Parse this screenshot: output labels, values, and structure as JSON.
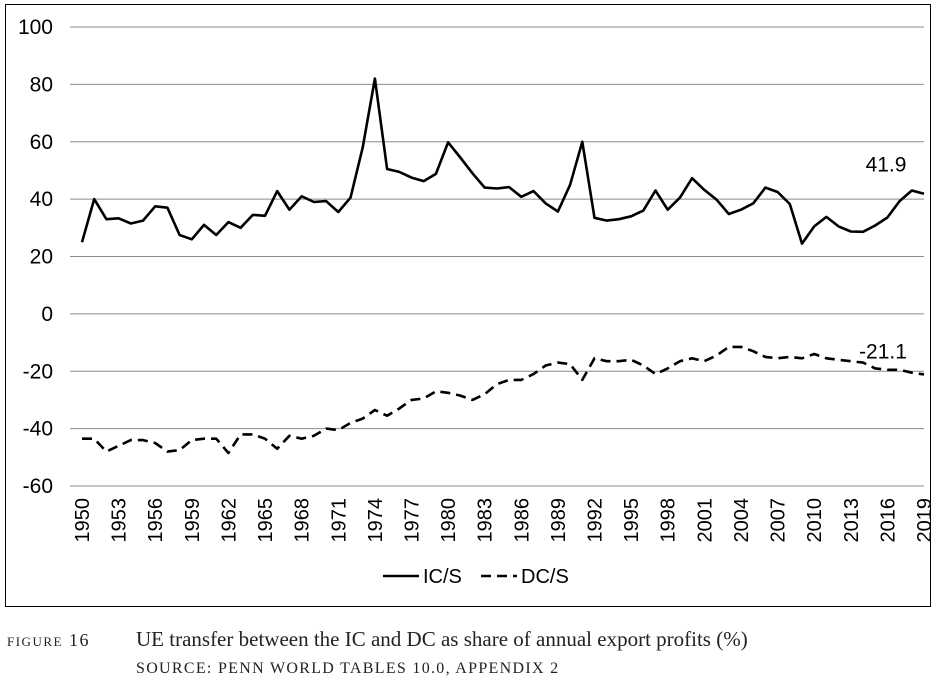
{
  "chart_data": {
    "type": "line",
    "x": [
      1950,
      1951,
      1952,
      1953,
      1954,
      1955,
      1956,
      1957,
      1958,
      1959,
      1960,
      1961,
      1962,
      1963,
      1964,
      1965,
      1966,
      1967,
      1968,
      1969,
      1970,
      1971,
      1972,
      1973,
      1974,
      1975,
      1976,
      1977,
      1978,
      1979,
      1980,
      1981,
      1982,
      1983,
      1984,
      1985,
      1986,
      1987,
      1988,
      1989,
      1990,
      1991,
      1992,
      1993,
      1994,
      1995,
      1996,
      1997,
      1998,
      1999,
      2000,
      2001,
      2002,
      2003,
      2004,
      2005,
      2006,
      2007,
      2008,
      2009,
      2010,
      2011,
      2012,
      2013,
      2014,
      2015,
      2016,
      2017,
      2018,
      2019
    ],
    "x_tick_labels": [
      "1950",
      "1953",
      "1956",
      "1959",
      "1962",
      "1965",
      "1968",
      "1971",
      "1974",
      "1977",
      "1980",
      "1983",
      "1986",
      "1989",
      "1992",
      "1995",
      "1998",
      "2001",
      "2004",
      "2007",
      "2010",
      "2013",
      "2016",
      "2019"
    ],
    "ylim": [
      -60,
      100
    ],
    "y_ticks": [
      100,
      80,
      60,
      40,
      20,
      0,
      -20,
      -40,
      -60
    ],
    "grid": "horizontal",
    "legend_position": "bottom",
    "series": [
      {
        "name": "IC/S",
        "style": "solid",
        "end_label": "41.9",
        "values": [
          25,
          40,
          33,
          33.3,
          31.5,
          32.5,
          37.5,
          37,
          27.5,
          26,
          31,
          27.5,
          32,
          30,
          34.5,
          34.2,
          42.8,
          36.3,
          41,
          39,
          39.3,
          35.5,
          40.5,
          58,
          82,
          50.5,
          49.5,
          47.5,
          46.3,
          48.8,
          59.8,
          54.5,
          49,
          44,
          43.7,
          44.2,
          40.8,
          42.8,
          38.5,
          35.7,
          45,
          60,
          33.5,
          32.5,
          33,
          34,
          36,
          43,
          36.3,
          40.5,
          47.3,
          43.2,
          39.8,
          34.8,
          36.3,
          38.5,
          44,
          42.5,
          38.3,
          24.5,
          30.5,
          33.8,
          30.5,
          28.7,
          28.6,
          30.8,
          33.6,
          39.3,
          43,
          41.9
        ]
      },
      {
        "name": "DC/S",
        "style": "dashed",
        "end_label": "-21.1",
        "values": [
          -43.5,
          -43.5,
          -48,
          -46,
          -44,
          -44,
          -45,
          -48,
          -47.5,
          -44,
          -43.5,
          -43.5,
          -48.5,
          -42,
          -42,
          -43.5,
          -47,
          -42.5,
          -43.5,
          -42.5,
          -40,
          -40.5,
          -38,
          -36.5,
          -33.5,
          -35.5,
          -33,
          -30,
          -29.5,
          -27,
          -27.5,
          -28.5,
          -30,
          -28,
          -24.5,
          -23,
          -23,
          -21,
          -18,
          -17,
          -17.5,
          -23,
          -15.5,
          -16.5,
          -16.5,
          -16,
          -18,
          -21,
          -19,
          -16.5,
          -15.5,
          -16.5,
          -14.5,
          -11.5,
          -11.5,
          -13,
          -15,
          -15.5,
          -15,
          -15.5,
          -14,
          -15.5,
          -16,
          -16.5,
          -17,
          -19,
          -19.5,
          -19.5,
          -20.5,
          -21.1
        ]
      }
    ]
  },
  "caption": {
    "figure_number": "FIGURE 16",
    "title": "UE transfer between the IC and DC as share of annual export profits (%)",
    "source": "SOURCE: PENN WORLD TABLES 10.0, APPENDIX 2"
  }
}
